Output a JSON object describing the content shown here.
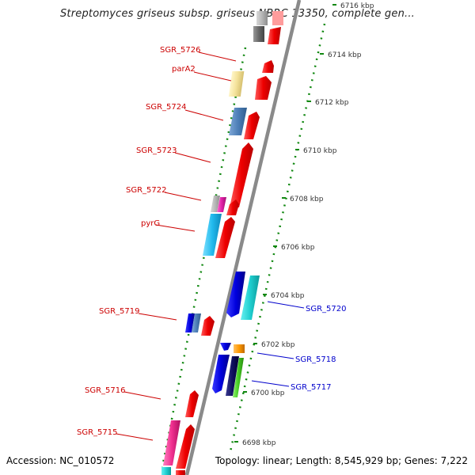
{
  "title": "Streptomyces griseus subsp. griseus NBRC 13350, complete gen...",
  "accession": "Accession: NC_010572",
  "summary": "Topology: linear; Length: 8,545,929 bp; Genes: 7,222",
  "scale_ticks": [
    {
      "label": "6716 kbp"
    },
    {
      "label": "6714 kbp"
    },
    {
      "label": "6712 kbp"
    },
    {
      "label": "6710 kbp"
    },
    {
      "label": "6708 kbp"
    },
    {
      "label": "6706 kbp"
    },
    {
      "label": "6704 kbp"
    },
    {
      "label": "6702 kbp"
    },
    {
      "label": "6700 kbp"
    },
    {
      "label": "6698 kbp"
    }
  ],
  "left_labels": [
    {
      "text": "SGR_5726"
    },
    {
      "text": "parA2"
    },
    {
      "text": "SGR_5724"
    },
    {
      "text": "SGR_5723"
    },
    {
      "text": "SGR_5722"
    },
    {
      "text": "pyrG"
    },
    {
      "text": "SGR_5719"
    },
    {
      "text": "SGR_5716"
    },
    {
      "text": "SGR_5715"
    }
  ],
  "right_labels": [
    {
      "text": "SGR_5720"
    },
    {
      "text": "SGR_5718"
    },
    {
      "text": "SGR_5717"
    }
  ],
  "colors": {
    "label_left": "#cc0000",
    "label_right": "#0000cc",
    "tick": "#118811",
    "backbone": "#888888"
  }
}
